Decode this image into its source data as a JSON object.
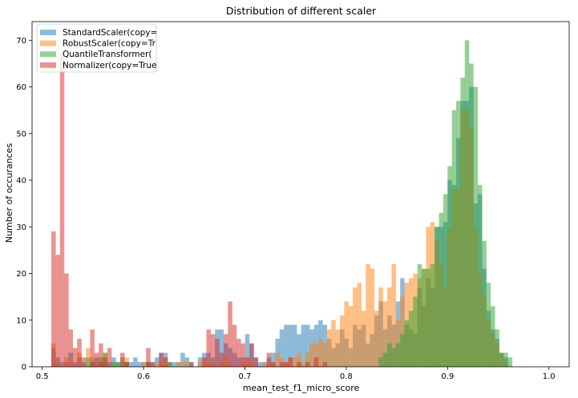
{
  "chart_data": {
    "type": "histogram",
    "title": "Distribution of different scaler",
    "xlabel": "mean_test_f1_micro_score",
    "ylabel": "Number of occurances",
    "xlim": [
      0.49,
      1.02
    ],
    "ylim": [
      0,
      74
    ],
    "xticks": [
      "0.5",
      "0.6",
      "0.7",
      "0.8",
      "0.9",
      "1.0"
    ],
    "yticks": [
      "0",
      "10",
      "20",
      "30",
      "40",
      "50",
      "60",
      "70"
    ],
    "legend_position": "top-left",
    "grid": false,
    "bin_start": 0.509,
    "bin_width": 0.00425,
    "series": [
      {
        "name": "StandardScaler(copy=",
        "color": "#1f77b4",
        "counts": [
          4,
          2,
          1,
          1,
          3,
          1,
          2,
          1,
          0,
          1,
          2,
          1,
          1,
          1,
          2,
          1,
          0,
          1,
          1,
          2,
          1,
          1,
          1,
          1,
          2,
          3,
          3,
          1,
          1,
          1,
          3,
          2,
          1,
          0,
          2,
          3,
          3,
          2,
          8,
          8,
          5,
          4,
          3,
          2,
          2,
          7,
          5,
          2,
          1,
          1,
          2,
          3,
          6,
          8,
          9,
          9,
          9,
          7,
          9,
          9,
          8,
          9,
          10,
          9,
          6,
          4,
          5,
          8,
          6,
          4,
          9,
          8,
          9,
          5,
          7,
          11,
          14,
          8,
          11,
          9,
          14,
          19,
          9,
          8,
          7,
          17,
          13,
          19,
          17,
          30,
          30,
          31,
          40,
          39,
          49,
          57,
          57,
          60,
          35,
          37,
          21,
          12,
          8,
          6,
          3,
          2,
          0,
          0
        ]
      },
      {
        "name": "RobustScaler(copy=Tr",
        "color": "#ff7f0e",
        "counts": [
          5,
          1,
          0,
          2,
          1,
          0,
          3,
          0,
          4,
          2,
          1,
          1,
          3,
          0,
          1,
          0,
          1,
          2,
          0,
          0,
          0,
          1,
          1,
          0,
          1,
          1,
          2,
          1,
          0,
          1,
          1,
          1,
          0,
          0,
          1,
          2,
          1,
          1,
          0,
          1,
          2,
          1,
          0,
          0,
          1,
          2,
          1,
          0,
          0,
          1,
          1,
          1,
          3,
          2,
          1,
          2,
          2,
          3,
          1,
          3,
          5,
          5,
          6,
          5,
          8,
          10,
          8,
          11,
          14,
          13,
          17,
          18,
          12,
          22,
          21,
          12,
          17,
          14,
          17,
          22,
          10,
          15,
          18,
          19,
          20,
          19,
          21,
          30,
          31,
          27,
          22,
          17,
          30,
          38,
          38,
          55,
          55,
          51,
          30,
          20,
          15,
          10,
          7,
          5,
          3,
          1,
          0,
          0
        ]
      },
      {
        "name": "QuantileTransformer(",
        "color": "#2ca02c",
        "counts": [
          0,
          0,
          0,
          0,
          0,
          0,
          0,
          0,
          2,
          1,
          0,
          2,
          3,
          0,
          1,
          1,
          2,
          1,
          0,
          0,
          0,
          0,
          1,
          0,
          0,
          0,
          0,
          1,
          0,
          0,
          0,
          0,
          0,
          0,
          0,
          0,
          0,
          0,
          0,
          0,
          0,
          0,
          0,
          0,
          0,
          0,
          0,
          0,
          0,
          0,
          0,
          0,
          0,
          0,
          0,
          0,
          0,
          0,
          0,
          0,
          0,
          0,
          0,
          0,
          0,
          0,
          0,
          0,
          0,
          0,
          0,
          0,
          0,
          0,
          0,
          0,
          2,
          3,
          5,
          4,
          5,
          7,
          10,
          12,
          15,
          22,
          21,
          21,
          22,
          30,
          33,
          37,
          43,
          55,
          57,
          62,
          70,
          65,
          60,
          39,
          27,
          18,
          13,
          8,
          3,
          3,
          2,
          0
        ]
      },
      {
        "name": "Normalizer(copy=True",
        "color": "#d62728",
        "counts": [
          29,
          24,
          67,
          20,
          8,
          4,
          6,
          2,
          0,
          8,
          3,
          5,
          2,
          4,
          0,
          0,
          3,
          1,
          0,
          0,
          0,
          0,
          4,
          1,
          0,
          3,
          2,
          0,
          0,
          0,
          0,
          0,
          1,
          0,
          0,
          2,
          8,
          7,
          6,
          3,
          7,
          14,
          9,
          6,
          5,
          2,
          5,
          2,
          0,
          0,
          3,
          1,
          0,
          1,
          1,
          2,
          0,
          1,
          0,
          1,
          0,
          2,
          0,
          1,
          0,
          0,
          0,
          0,
          0,
          0,
          0,
          0,
          0,
          0,
          0,
          0,
          0,
          0,
          0,
          0,
          0,
          0,
          0,
          0,
          0,
          0,
          0,
          0,
          0,
          0,
          0,
          0,
          0,
          0,
          0,
          0,
          0,
          0,
          0,
          0,
          0,
          0,
          0,
          0,
          0,
          0,
          0,
          0
        ]
      }
    ]
  }
}
